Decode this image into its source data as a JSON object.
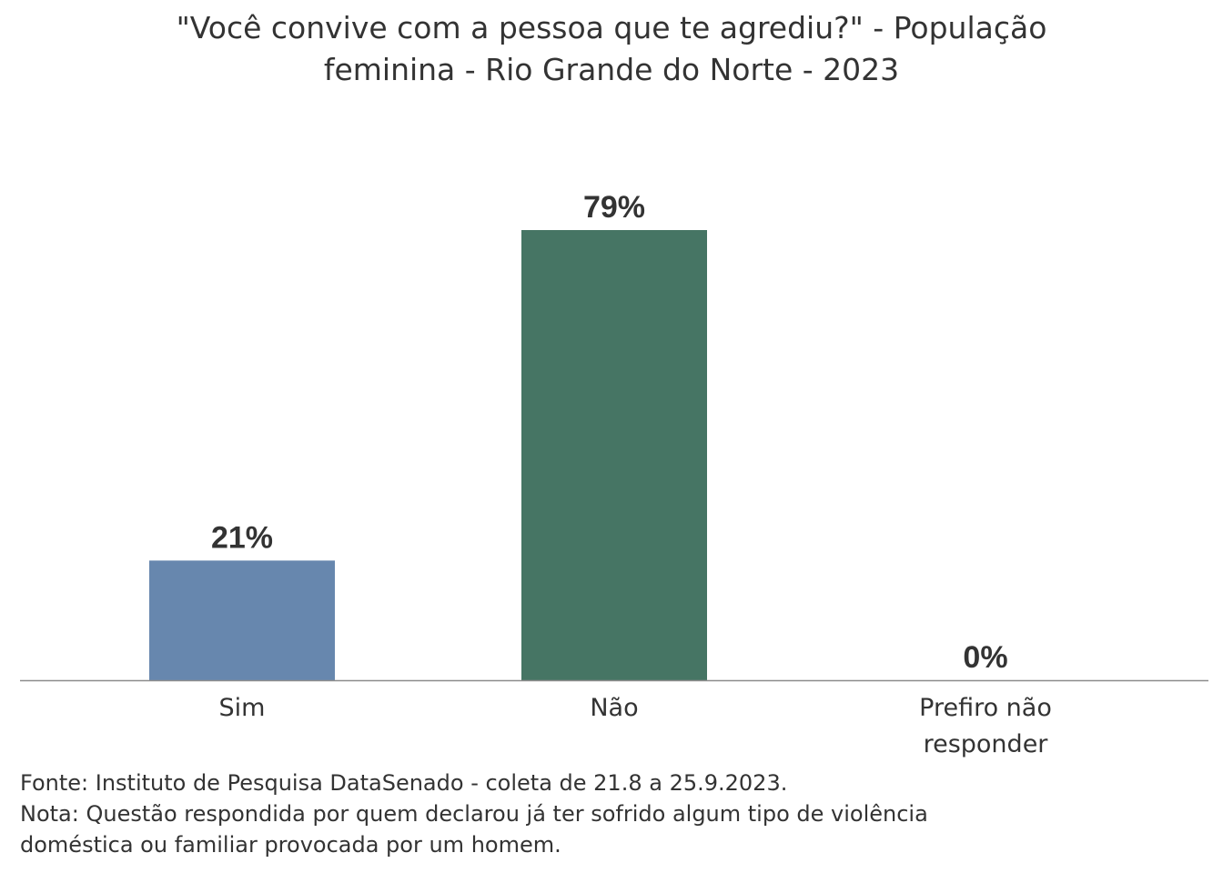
{
  "chart_data": {
    "type": "bar",
    "title_lines": [
      "\"Você convive com a pessoa que te agrediu?\" - População",
      "feminina - Rio Grande do Norte - 2023"
    ],
    "categories": [
      "Sim",
      "Não",
      "Prefiro não responder"
    ],
    "category_label_lines": [
      [
        "Sim"
      ],
      [
        "Não"
      ],
      [
        "Prefiro não",
        "responder"
      ]
    ],
    "values": [
      21,
      79,
      0
    ],
    "value_labels": [
      "21%",
      "79%",
      "0%"
    ],
    "unit": "%",
    "colors": [
      "#6787ae",
      "#467564",
      "#6787ae"
    ],
    "ylim": [
      0,
      79
    ],
    "grid": false,
    "legend": "none"
  },
  "footnotes": [
    "Fonte: Instituto de Pesquisa DataSenado - coleta de 21.8 a 25.9.2023.",
    "Nota: Questão respondida por quem declarou já ter sofrido algum tipo de violência",
    "doméstica ou familiar provocada por um homem."
  ],
  "colors": {
    "text": "#333333",
    "axis": "#8c8c8c"
  }
}
